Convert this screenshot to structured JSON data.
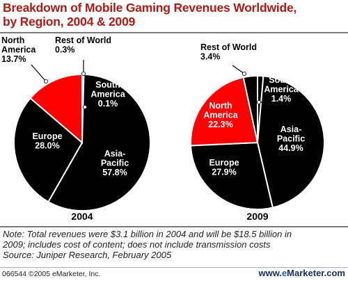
{
  "title_line1": "Breakdown of Mobile Gaming Revenues Worldwide,",
  "title_line2": "by Region, 2004 & 2009",
  "note_line1": "Note: Total revenues were $3.1 billion in 2004 and will be $18.5 billion in",
  "note_line2": "2009; includes cost of content; does not include transmission costs",
  "source": "Source: Juniper Research, February 2005",
  "footer_id": "066544 ©2005 eMarketer, Inc.",
  "footer_brand_prefix": "www.",
  "footer_brand_e": "e",
  "footer_brand_rest": "Marketer.com",
  "colors": {
    "title": "#b01a14",
    "slice_dark": "#000000",
    "slice_highlight": "#ff0000",
    "slice_border": "#ffffff"
  },
  "chart_data": [
    {
      "type": "pie",
      "title": "2004",
      "slices": [
        {
          "label": "Asia-Pacific",
          "value": 57.8,
          "color": "#000000"
        },
        {
          "label": "Europe",
          "value": 28.0,
          "color": "#000000"
        },
        {
          "label": "North America",
          "value": 13.7,
          "color": "#ff0000"
        },
        {
          "label": "Rest of World",
          "value": 0.3,
          "color": "#000000"
        },
        {
          "label": "South America",
          "value": 0.1,
          "color": "#000000"
        }
      ],
      "labels": [
        {
          "lines": [
            "North",
            "America",
            "13.7%"
          ]
        },
        {
          "lines": [
            "Rest of World",
            "0.3%"
          ]
        },
        {
          "lines": [
            "South",
            "America",
            "0.1%"
          ]
        },
        {
          "lines": [
            "Europe",
            "28.0%"
          ]
        },
        {
          "lines": [
            "Asia-",
            "Pacific",
            "57.8%"
          ]
        }
      ]
    },
    {
      "type": "pie",
      "title": "2009",
      "slices": [
        {
          "label": "Asia-Pacific",
          "value": 44.9,
          "color": "#000000"
        },
        {
          "label": "Europe",
          "value": 27.9,
          "color": "#000000"
        },
        {
          "label": "North America",
          "value": 22.3,
          "color": "#ff0000"
        },
        {
          "label": "Rest of World",
          "value": 3.4,
          "color": "#000000"
        },
        {
          "label": "South America",
          "value": 1.4,
          "color": "#000000"
        }
      ],
      "labels": [
        {
          "lines": [
            "Rest of World",
            "3.4%"
          ]
        },
        {
          "lines": [
            "South",
            "America",
            "1.4%"
          ]
        },
        {
          "lines": [
            "North",
            "America",
            "22.3%"
          ]
        },
        {
          "lines": [
            "Asia-",
            "Pacific",
            "44.9%"
          ]
        },
        {
          "lines": [
            "Europe",
            "27.9%"
          ]
        }
      ]
    }
  ]
}
